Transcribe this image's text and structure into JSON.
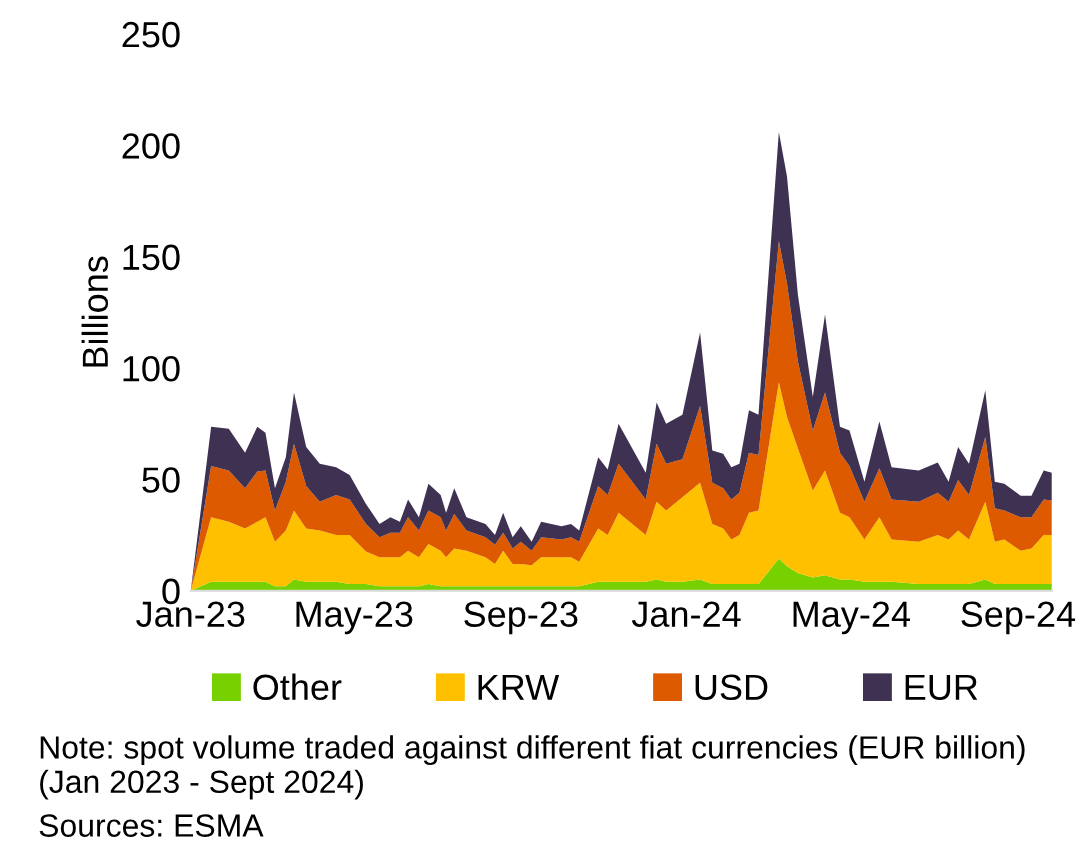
{
  "chart_data": {
    "type": "area",
    "stacked": true,
    "ylabel": "Billions",
    "x": [
      "2023-01-01",
      "2023-01-16",
      "2023-01-29",
      "2023-02-10",
      "2023-02-19",
      "2023-02-25",
      "2023-03-04",
      "2023-03-12",
      "2023-03-18",
      "2023-03-27",
      "2023-04-06",
      "2023-04-18",
      "2023-04-28",
      "2023-05-10",
      "2023-05-20",
      "2023-05-28",
      "2023-06-04",
      "2023-06-10",
      "2023-06-18",
      "2023-06-25",
      "2023-07-04",
      "2023-07-08",
      "2023-07-14",
      "2023-07-23",
      "2023-08-06",
      "2023-08-13",
      "2023-08-19",
      "2023-08-26",
      "2023-09-01",
      "2023-09-09",
      "2023-09-16",
      "2023-10-01",
      "2023-10-08",
      "2023-10-14",
      "2023-10-28",
      "2023-11-04",
      "2023-11-12",
      "2023-12-02",
      "2023-12-10",
      "2023-12-17",
      "2023-12-29",
      "2024-01-11",
      "2024-01-20",
      "2024-01-28",
      "2024-02-03",
      "2024-02-09",
      "2024-02-16",
      "2024-02-23",
      "2024-03-09",
      "2024-03-15",
      "2024-03-23",
      "2024-04-03",
      "2024-04-12",
      "2024-04-23",
      "2024-04-30",
      "2024-05-11",
      "2024-05-22",
      "2024-05-31",
      "2024-06-20",
      "2024-07-04",
      "2024-07-12",
      "2024-07-19",
      "2024-07-27",
      "2024-08-08",
      "2024-08-15",
      "2024-08-22",
      "2024-09-03",
      "2024-09-11",
      "2024-09-20",
      "2024-09-26"
    ],
    "series": [
      {
        "name": "Other",
        "color": "#77d100",
        "values": [
          0,
          4,
          4,
          4,
          4,
          4,
          2,
          2,
          5,
          4,
          4,
          4,
          3,
          3,
          2,
          2,
          2,
          2,
          2,
          3,
          2,
          2,
          2,
          2,
          2,
          2,
          2,
          2,
          2,
          2,
          2,
          2,
          2,
          2,
          4,
          4,
          4,
          4,
          5,
          4,
          4,
          5,
          3,
          3,
          3,
          3,
          3,
          3,
          14.5,
          11,
          8,
          6,
          7,
          5,
          5,
          4,
          4,
          4,
          3,
          3,
          3,
          3,
          3,
          5,
          3,
          3,
          3,
          3,
          3,
          3
        ]
      },
      {
        "name": "KRW",
        "color": "#ffc000",
        "values": [
          0,
          29,
          27,
          24,
          27,
          29,
          20,
          25,
          31,
          24,
          23,
          21,
          22,
          14.6,
          13,
          13,
          13,
          16,
          13,
          18,
          16,
          13,
          17,
          16,
          13,
          10,
          16,
          10,
          10,
          9.5,
          13,
          13,
          13,
          11,
          24,
          21,
          31,
          21,
          35,
          32,
          38,
          43.5,
          27,
          25,
          20,
          22,
          32,
          33,
          79.1,
          67,
          56,
          39,
          47,
          30,
          28,
          19,
          29,
          19,
          19,
          22,
          20,
          24,
          20,
          35,
          19,
          20,
          15,
          16,
          22,
          22
        ]
      },
      {
        "name": "USD",
        "color": "#dd5a00",
        "values": [
          0,
          23,
          23,
          18,
          22.6,
          21,
          14,
          22,
          30,
          19,
          13,
          18,
          16,
          12.4,
          9,
          11,
          11,
          15,
          12,
          15,
          15,
          12,
          15.5,
          9,
          9,
          8.6,
          8,
          7,
          10,
          6.5,
          9,
          8,
          9,
          9,
          19,
          18,
          22,
          16,
          26,
          21,
          17,
          34.5,
          18.5,
          18,
          18,
          19,
          27,
          25,
          63.4,
          60,
          39,
          27,
          35,
          27,
          23,
          17,
          22,
          18,
          18,
          19,
          17,
          22.7,
          20,
          29,
          15,
          13,
          15,
          14,
          16,
          15.5
        ]
      },
      {
        "name": "EUR",
        "color": "#3f3152",
        "values": [
          0,
          17.6,
          18.7,
          16,
          20,
          17,
          10,
          11,
          23,
          17.5,
          17,
          12.5,
          11,
          9,
          6,
          7,
          5,
          8,
          6,
          12,
          10,
          8,
          11.5,
          6,
          6,
          4.4,
          9,
          5,
          7,
          4,
          7,
          6,
          6,
          5,
          13,
          11.5,
          18,
          12,
          18.5,
          18,
          20,
          33,
          14.5,
          15.5,
          14.5,
          13,
          19,
          18,
          49,
          48,
          30,
          15,
          35,
          11.6,
          16,
          9,
          21,
          14.5,
          14,
          13.6,
          9,
          14.8,
          14,
          21,
          12,
          12,
          9.7,
          9.7,
          13,
          12.5
        ]
      }
    ],
    "xlim": [
      "2023-01-01",
      "2024-09-26"
    ],
    "xticks": [
      {
        "value": "2023-01-01",
        "label": "Jan-23"
      },
      {
        "value": "2023-05-01",
        "label": "May-23"
      },
      {
        "value": "2023-09-01",
        "label": "Sep-23"
      },
      {
        "value": "2024-01-01",
        "label": "Jan-24"
      },
      {
        "value": "2024-05-01",
        "label": "May-24"
      },
      {
        "value": "2024-09-01",
        "label": "Sep-24"
      }
    ],
    "ylim": [
      0,
      250
    ],
    "yticks": [
      0,
      50,
      100,
      150,
      200,
      250
    ],
    "legend": "bottom",
    "annotations": [
      "Note: spot volume traded against different fiat currencies (EUR billion) (Jan 2023 - Sept 2024)",
      "Sources: ESMA"
    ]
  }
}
